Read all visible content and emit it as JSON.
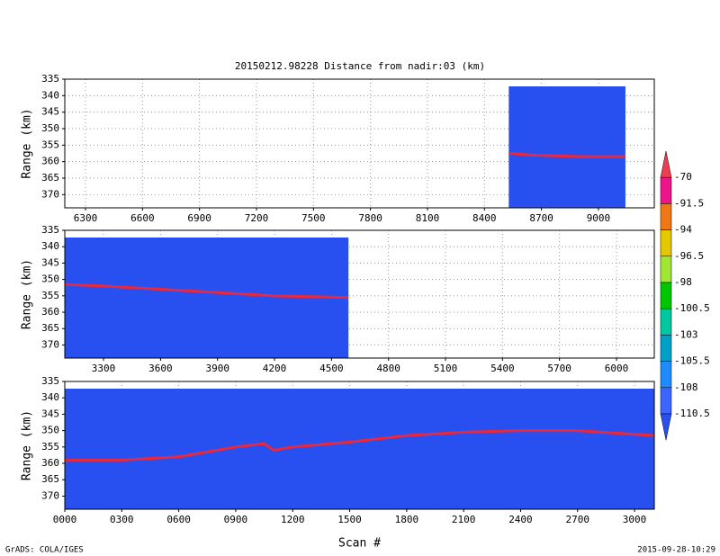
{
  "chart_data": [
    {
      "type": "line",
      "title": "20150212.98228    Distance from nadir:03 (km)",
      "ylabel": "Range (km)",
      "color": "#e8283c",
      "fill": "#2850f0",
      "x": [
        8528,
        8650,
        8800,
        8950,
        9142
      ],
      "values": [
        357.5,
        358,
        358.3,
        358.5,
        358.5
      ],
      "xlim": [
        6191,
        9294
      ],
      "xticks": [
        6300,
        6600,
        6900,
        7200,
        7500,
        7800,
        8100,
        8400,
        8700,
        9000
      ],
      "ylim": [
        335,
        374
      ],
      "yticks": [
        335,
        340,
        345,
        350,
        355,
        360,
        365,
        370
      ],
      "grid": true
    },
    {
      "type": "line",
      "ylabel": "Range (km)",
      "color": "#e8283c",
      "fill": "#2850f0",
      "x": [
        3096,
        3300,
        3600,
        3900,
        4200,
        4589
      ],
      "values": [
        351.5,
        352,
        353,
        354,
        355,
        355.5
      ],
      "xlim": [
        3096,
        6199
      ],
      "xticks": [
        3300,
        3600,
        3900,
        4200,
        4500,
        4800,
        5100,
        5400,
        5700,
        6000
      ],
      "ylim": [
        335,
        374
      ],
      "yticks": [
        335,
        340,
        345,
        350,
        355,
        360,
        365,
        370
      ],
      "grid": true
    },
    {
      "type": "line",
      "ylabel": "Range (km)",
      "xlabel": "Scan #",
      "color": "#e8283c",
      "fill": "#2850f0",
      "x": [
        0,
        300,
        600,
        700,
        900,
        1050,
        1100,
        1200,
        1500,
        1800,
        2100,
        2400,
        2700,
        3104
      ],
      "values": [
        359,
        359,
        358,
        357,
        355,
        354,
        356,
        355,
        353.5,
        351.5,
        350.5,
        350,
        350,
        351.5
      ],
      "xlim": [
        0,
        3104
      ],
      "xticks": [
        {
          "value": 0,
          "label": "0000"
        },
        {
          "value": 300,
          "label": "0300"
        },
        {
          "value": 600,
          "label": "0600"
        },
        {
          "value": 900,
          "label": "0900"
        },
        1200,
        1500,
        1800,
        2100,
        2400,
        2700,
        3000
      ],
      "ylim": [
        335,
        374
      ],
      "yticks": [
        335,
        340,
        345,
        350,
        355,
        360,
        365,
        370
      ],
      "grid": true
    },
    {
      "type": "colorbar",
      "levels": [
        -70,
        -91.5,
        -94,
        -96.5,
        -98,
        -100.5,
        -103,
        -105.5,
        -108,
        -110.5
      ],
      "colors": [
        "#f03c50",
        "#f0148c",
        "#f07814",
        "#e6c800",
        "#a0e632",
        "#00c800",
        "#00c8a0",
        "#00a0c8",
        "#1e8cff",
        "#3c64ff",
        "#2850f0"
      ]
    }
  ],
  "footer_left": "GrADS: COLA/IGES",
  "footer_right": "2015-09-28-10:29"
}
